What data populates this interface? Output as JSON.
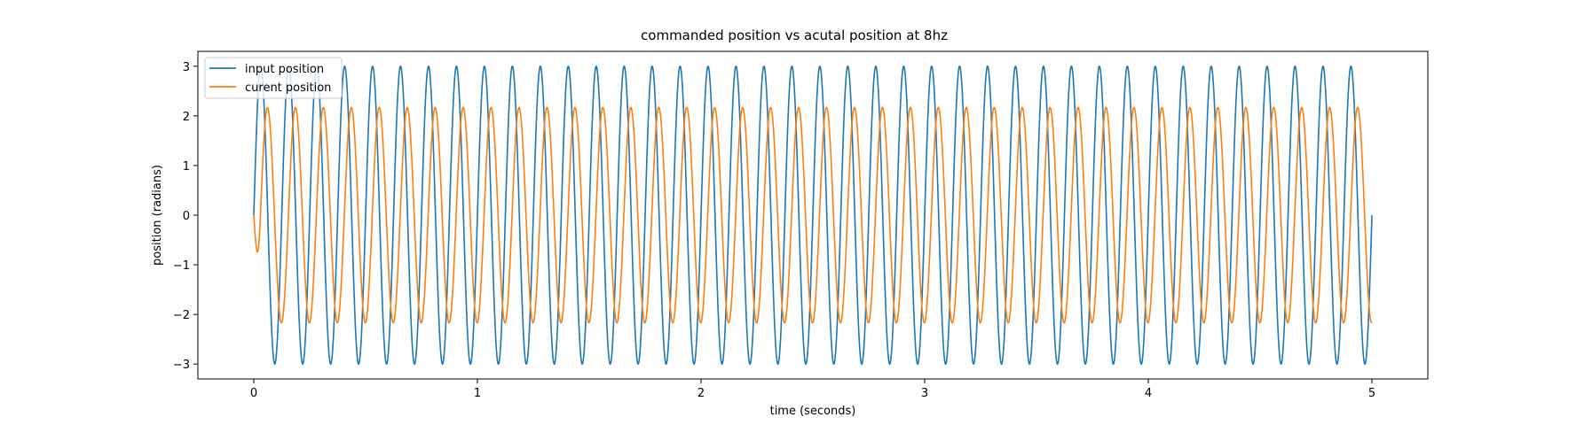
{
  "chart_data": {
    "type": "line",
    "title": "commanded position vs acutal position at 8hz",
    "xlabel": "time (seconds)",
    "ylabel": "position (radians)",
    "xlim": [
      -0.25,
      5.25
    ],
    "ylim": [
      -3.3,
      3.3
    ],
    "xticks": [
      0,
      1,
      2,
      3,
      4,
      5
    ],
    "yticks": [
      -3,
      -2,
      -1,
      0,
      1,
      2,
      3
    ],
    "grid": false,
    "legend_position": "top-left",
    "series": [
      {
        "name": "input position",
        "color": "#1f77b4",
        "function": "sine",
        "amplitude": 3.0,
        "frequency_hz": 8,
        "phase": 0,
        "x_start": 0,
        "x_end": 5
      },
      {
        "name": "curent position",
        "color": "#ff7f0e",
        "function": "sine",
        "amplitude": 2.17,
        "frequency_hz": 8,
        "phase": -1.5,
        "x_start": 0,
        "x_end": 5
      }
    ]
  }
}
